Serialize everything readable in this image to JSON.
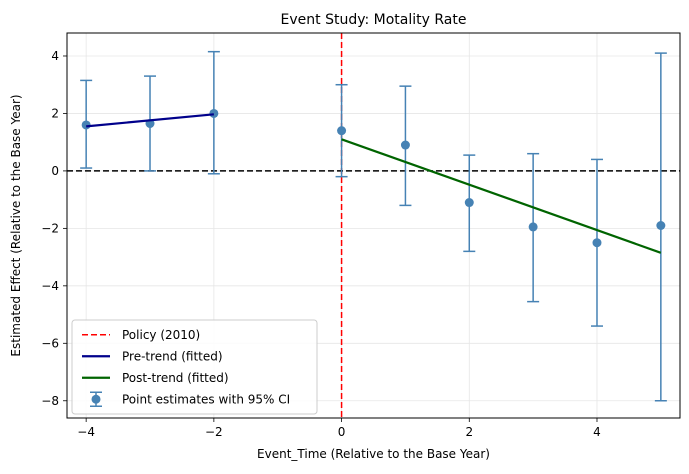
{
  "chart_data": {
    "type": "scatter",
    "title": "Event Study: Motality Rate",
    "xlabel": "Event_Time (Relative to the Base Year)",
    "ylabel": "Estimated Effect (Relative to the Base Year)",
    "xlim": [
      -4.3,
      5.3
    ],
    "ylim": [
      -8.6,
      4.8
    ],
    "x_ticks": [
      -4,
      -2,
      0,
      2,
      4
    ],
    "y_ticks": [
      -8,
      -6,
      -4,
      -2,
      0,
      2,
      4
    ],
    "grid": true,
    "legend_position": "lower-left",
    "series": [
      {
        "name": "Point estimates with 95% CI",
        "kind": "errorbar",
        "color": "#4682b4",
        "x": [
          -4,
          -3,
          -2,
          0,
          1,
          2,
          3,
          4,
          5
        ],
        "y": [
          1.6,
          1.65,
          2.0,
          1.4,
          0.9,
          -1.1,
          -1.95,
          -2.5,
          -1.9
        ],
        "ci_low": [
          0.1,
          0.0,
          -0.1,
          -0.2,
          -1.2,
          -2.8,
          -4.55,
          -5.4,
          -8.0
        ],
        "ci_high": [
          3.15,
          3.3,
          4.15,
          3.0,
          2.95,
          0.55,
          0.6,
          0.4,
          4.1
        ]
      },
      {
        "name": "Pre-trend (fitted)",
        "kind": "line",
        "color": "#00008b",
        "x": [
          -4,
          -2
        ],
        "y": [
          1.55,
          1.97
        ]
      },
      {
        "name": "Post-trend (fitted)",
        "kind": "line",
        "color": "#006400",
        "x": [
          0,
          5
        ],
        "y": [
          1.1,
          -2.85
        ]
      }
    ],
    "reference_lines": [
      {
        "name": "Policy (2010)",
        "orientation": "vertical",
        "value": 0,
        "color": "#ff0000",
        "style": "dashed"
      },
      {
        "orientation": "horizontal",
        "value": 0,
        "color": "#000000",
        "style": "dashed"
      }
    ],
    "legend": [
      {
        "label": "Policy (2010)",
        "kind": "dashed-line",
        "color": "#ff0000"
      },
      {
        "label": "Pre-trend (fitted)",
        "kind": "line",
        "color": "#00008b"
      },
      {
        "label": "Post-trend (fitted)",
        "kind": "line",
        "color": "#006400"
      },
      {
        "label": "Point estimates with 95% CI",
        "kind": "errorbar",
        "color": "#4682b4"
      }
    ]
  }
}
